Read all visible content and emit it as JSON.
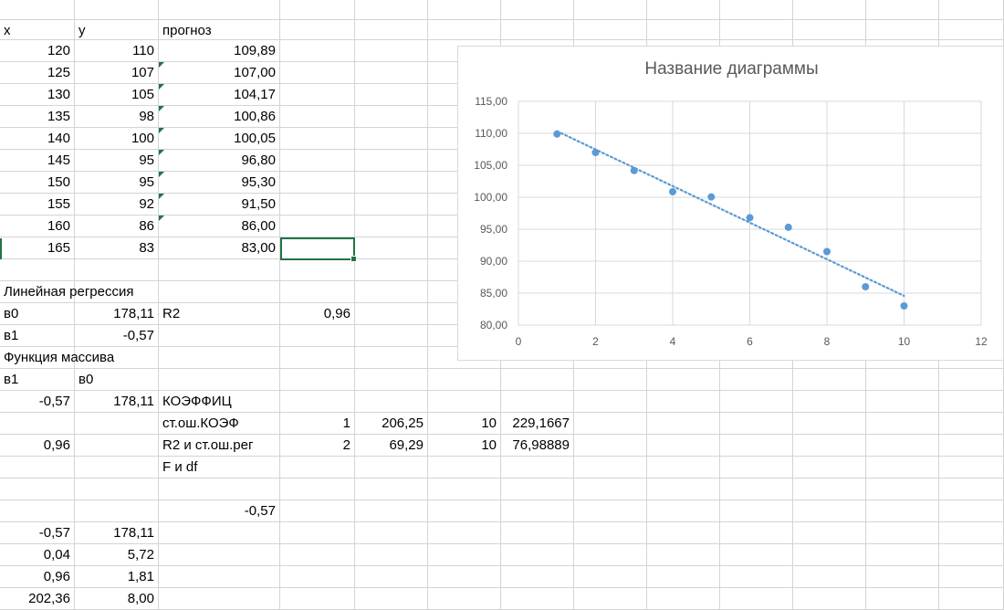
{
  "sheet": {
    "col_x": [
      0,
      82,
      174,
      307,
      389,
      469,
      549,
      629,
      709,
      789,
      869,
      949,
      1029,
      1100
    ],
    "row_y": [
      22,
      44,
      68,
      92,
      116,
      140,
      164,
      188,
      212,
      236,
      260,
      284,
      308,
      332,
      356,
      380,
      404,
      428,
      452,
      476,
      500,
      524,
      548,
      572,
      596,
      620,
      644,
      668
    ],
    "cells": [
      {
        "r": 0,
        "c": 0,
        "v": "x",
        "a": "l"
      },
      {
        "r": 0,
        "c": 1,
        "v": "y",
        "a": "l"
      },
      {
        "r": 0,
        "c": 2,
        "v": "прогноз",
        "a": "l"
      },
      {
        "r": 1,
        "c": 0,
        "v": "120",
        "a": "r"
      },
      {
        "r": 1,
        "c": 1,
        "v": "110",
        "a": "r"
      },
      {
        "r": 1,
        "c": 2,
        "v": "109,89",
        "a": "r"
      },
      {
        "r": 2,
        "c": 0,
        "v": "125",
        "a": "r"
      },
      {
        "r": 2,
        "c": 1,
        "v": "107",
        "a": "r"
      },
      {
        "r": 2,
        "c": 2,
        "v": "107,00",
        "a": "r",
        "f": 1
      },
      {
        "r": 3,
        "c": 0,
        "v": "130",
        "a": "r"
      },
      {
        "r": 3,
        "c": 1,
        "v": "105",
        "a": "r"
      },
      {
        "r": 3,
        "c": 2,
        "v": "104,17",
        "a": "r",
        "f": 1
      },
      {
        "r": 4,
        "c": 0,
        "v": "135",
        "a": "r"
      },
      {
        "r": 4,
        "c": 1,
        "v": "98",
        "a": "r"
      },
      {
        "r": 4,
        "c": 2,
        "v": "100,86",
        "a": "r",
        "f": 1
      },
      {
        "r": 5,
        "c": 0,
        "v": "140",
        "a": "r"
      },
      {
        "r": 5,
        "c": 1,
        "v": "100",
        "a": "r"
      },
      {
        "r": 5,
        "c": 2,
        "v": "100,05",
        "a": "r",
        "f": 1
      },
      {
        "r": 6,
        "c": 0,
        "v": "145",
        "a": "r"
      },
      {
        "r": 6,
        "c": 1,
        "v": "95",
        "a": "r"
      },
      {
        "r": 6,
        "c": 2,
        "v": "96,80",
        "a": "r",
        "f": 1
      },
      {
        "r": 7,
        "c": 0,
        "v": "150",
        "a": "r"
      },
      {
        "r": 7,
        "c": 1,
        "v": "95",
        "a": "r"
      },
      {
        "r": 7,
        "c": 2,
        "v": "95,30",
        "a": "r",
        "f": 1
      },
      {
        "r": 8,
        "c": 0,
        "v": "155",
        "a": "r"
      },
      {
        "r": 8,
        "c": 1,
        "v": "92",
        "a": "r"
      },
      {
        "r": 8,
        "c": 2,
        "v": "91,50",
        "a": "r",
        "f": 1
      },
      {
        "r": 9,
        "c": 0,
        "v": "160",
        "a": "r"
      },
      {
        "r": 9,
        "c": 1,
        "v": "86",
        "a": "r"
      },
      {
        "r": 9,
        "c": 2,
        "v": "86,00",
        "a": "r",
        "f": 1
      },
      {
        "r": 10,
        "c": 0,
        "v": "165",
        "a": "r"
      },
      {
        "r": 10,
        "c": 1,
        "v": "83",
        "a": "r"
      },
      {
        "r": 10,
        "c": 2,
        "v": "83,00",
        "a": "r"
      },
      {
        "r": 12,
        "c": 0,
        "v": "Линейная регрессия",
        "a": "l"
      },
      {
        "r": 13,
        "c": 0,
        "v": "в0",
        "a": "l"
      },
      {
        "r": 13,
        "c": 1,
        "v": "178,11",
        "a": "r"
      },
      {
        "r": 13,
        "c": 2,
        "v": "R2",
        "a": "l"
      },
      {
        "r": 13,
        "c": 3,
        "v": "0,96",
        "a": "r"
      },
      {
        "r": 14,
        "c": 0,
        "v": "в1",
        "a": "l"
      },
      {
        "r": 14,
        "c": 1,
        "v": "-0,57",
        "a": "r"
      },
      {
        "r": 15,
        "c": 0,
        "v": "Функция массива",
        "a": "l"
      },
      {
        "r": 16,
        "c": 0,
        "v": "в1",
        "a": "l"
      },
      {
        "r": 16,
        "c": 1,
        "v": "в0",
        "a": "l"
      },
      {
        "r": 17,
        "c": 0,
        "v": "-0,57",
        "a": "r"
      },
      {
        "r": 17,
        "c": 1,
        "v": "178,11",
        "a": "r"
      },
      {
        "r": 17,
        "c": 2,
        "v": "КОЭФФИЦ",
        "a": "l"
      },
      {
        "r": 18,
        "c": 2,
        "v": "ст.ош.КОЭФ",
        "a": "l"
      },
      {
        "r": 18,
        "c": 3,
        "v": "1",
        "a": "r"
      },
      {
        "r": 18,
        "c": 4,
        "v": "206,25",
        "a": "r"
      },
      {
        "r": 18,
        "c": 5,
        "v": "10",
        "a": "r"
      },
      {
        "r": 18,
        "c": 6,
        "v": "229,1667",
        "a": "r"
      },
      {
        "r": 19,
        "c": 0,
        "v": "0,96",
        "a": "r"
      },
      {
        "r": 19,
        "c": 2,
        "v": "R2 и ст.ош.рег",
        "a": "l"
      },
      {
        "r": 19,
        "c": 3,
        "v": "2",
        "a": "r"
      },
      {
        "r": 19,
        "c": 4,
        "v": "69,29",
        "a": "r"
      },
      {
        "r": 19,
        "c": 5,
        "v": "10",
        "a": "r"
      },
      {
        "r": 19,
        "c": 6,
        "v": "76,98889",
        "a": "r"
      },
      {
        "r": 20,
        "c": 2,
        "v": "F и df",
        "a": "l"
      },
      {
        "r": 22,
        "c": 2,
        "v": "-0,57",
        "a": "r"
      },
      {
        "r": 23,
        "c": 0,
        "v": "-0,57",
        "a": "r"
      },
      {
        "r": 23,
        "c": 1,
        "v": "178,11",
        "a": "r"
      },
      {
        "r": 24,
        "c": 0,
        "v": "0,04",
        "a": "r"
      },
      {
        "r": 24,
        "c": 1,
        "v": "5,72",
        "a": "r"
      },
      {
        "r": 25,
        "c": 0,
        "v": "0,96",
        "a": "r"
      },
      {
        "r": 25,
        "c": 1,
        "v": "1,81",
        "a": "r"
      },
      {
        "r": 26,
        "c": 0,
        "v": "202,36",
        "a": "r"
      },
      {
        "r": 26,
        "c": 1,
        "v": "8,00",
        "a": "r"
      }
    ]
  },
  "chart_data": {
    "type": "scatter",
    "title": "Название диаграммы",
    "xlim": [
      0,
      12
    ],
    "ylim": [
      80,
      115
    ],
    "x_ticks": [
      0,
      2,
      4,
      6,
      8,
      10,
      12
    ],
    "y_ticks": [
      80,
      85,
      90,
      95,
      100,
      105,
      110,
      115
    ],
    "x_tick_labels": [
      "0",
      "2",
      "4",
      "6",
      "8",
      "10",
      "12"
    ],
    "y_tick_labels": [
      "80,00",
      "85,00",
      "90,00",
      "95,00",
      "100,00",
      "105,00",
      "110,00",
      "115,00"
    ],
    "grid": true,
    "legend": "none",
    "color": "#5b9bd5",
    "gridcolor": "#d9d9d9",
    "series": [
      {
        "x": [
          1,
          2,
          3,
          4,
          5,
          6,
          7,
          8,
          9,
          10
        ],
        "values": [
          109.89,
          107.0,
          104.17,
          100.86,
          100.05,
          96.8,
          95.3,
          91.5,
          86.0,
          83.0
        ]
      }
    ],
    "trendline": {
      "type": "linear",
      "style": "dotted"
    }
  }
}
